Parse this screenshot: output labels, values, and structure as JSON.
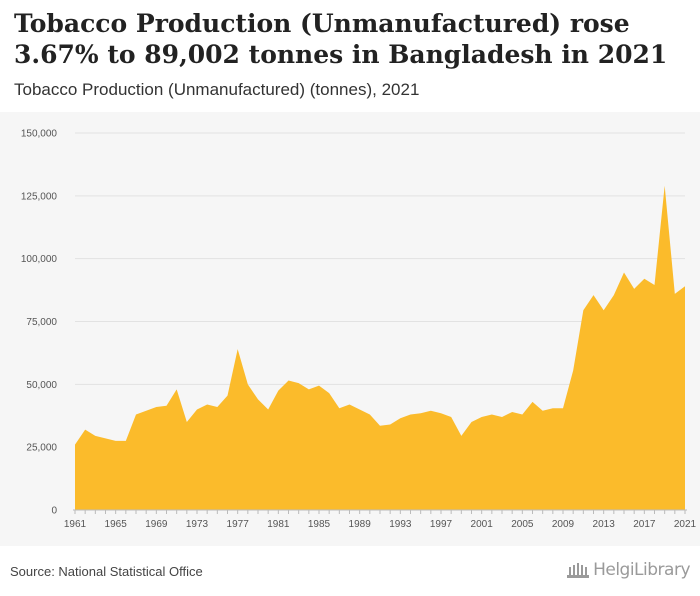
{
  "header": {
    "title": "Tobacco Production (Unmanufactured) rose 3.67% to 89,002 tonnes in Bangladesh in 2021",
    "subtitle": "Tobacco Production (Unmanufactured) (tonnes), 2021"
  },
  "footer": {
    "source": "Source: National Statistical Office",
    "brand": "HelgiLibrary"
  },
  "colors": {
    "area_fill": "#fbbb2b",
    "background": "#f6f6f6",
    "grid": "#e2e2e2"
  },
  "chart_data": {
    "type": "area",
    "title": "Tobacco Production (Unmanufactured) rose 3.67% to 89,002 tonnes in Bangladesh in 2021",
    "subtitle": "Tobacco Production (Unmanufactured) (tonnes), 2021",
    "xlabel": "",
    "ylabel": "",
    "ylim": [
      0,
      150000
    ],
    "xlim": [
      1961,
      2021
    ],
    "yticks": [
      0,
      25000,
      50000,
      75000,
      100000,
      125000,
      150000
    ],
    "ytick_labels": [
      "0",
      "25,000",
      "50,000",
      "75,000",
      "100,000",
      "125,000",
      "150,000"
    ],
    "xticks": [
      1961,
      1965,
      1969,
      1973,
      1977,
      1981,
      1985,
      1989,
      1993,
      1997,
      2001,
      2005,
      2009,
      2013,
      2017,
      2021
    ],
    "xtick_labels": [
      "1961",
      "1965",
      "1969",
      "1973",
      "1977",
      "1981",
      "1985",
      "1989",
      "1993",
      "1997",
      "2001",
      "2005",
      "2009",
      "2013",
      "2017",
      "2021"
    ],
    "grid": true,
    "legend": "none",
    "x": [
      1961,
      1962,
      1963,
      1964,
      1965,
      1966,
      1967,
      1968,
      1969,
      1970,
      1971,
      1972,
      1973,
      1974,
      1975,
      1976,
      1977,
      1978,
      1979,
      1980,
      1981,
      1982,
      1983,
      1984,
      1985,
      1986,
      1987,
      1988,
      1989,
      1990,
      1991,
      1992,
      1993,
      1994,
      1995,
      1996,
      1997,
      1998,
      1999,
      2000,
      2001,
      2002,
      2003,
      2004,
      2005,
      2006,
      2007,
      2008,
      2009,
      2010,
      2011,
      2012,
      2013,
      2014,
      2015,
      2016,
      2017,
      2018,
      2019,
      2020,
      2021
    ],
    "values": [
      26000,
      32000,
      29500,
      28500,
      27500,
      27500,
      38000,
      39500,
      41000,
      41500,
      48000,
      35000,
      40000,
      42000,
      41000,
      45500,
      64000,
      50000,
      44000,
      40000,
      47500,
      51500,
      50500,
      48000,
      49500,
      46500,
      40500,
      42000,
      40000,
      38000,
      33500,
      34000,
      36500,
      38000,
      38500,
      39500,
      38500,
      37000,
      29500,
      35000,
      37000,
      38000,
      37000,
      39000,
      38000,
      43000,
      39500,
      40500,
      40500,
      55500,
      79500,
      85500,
      79500,
      85500,
      94500,
      88000,
      92000,
      89500,
      129000,
      86000,
      89002
    ]
  }
}
